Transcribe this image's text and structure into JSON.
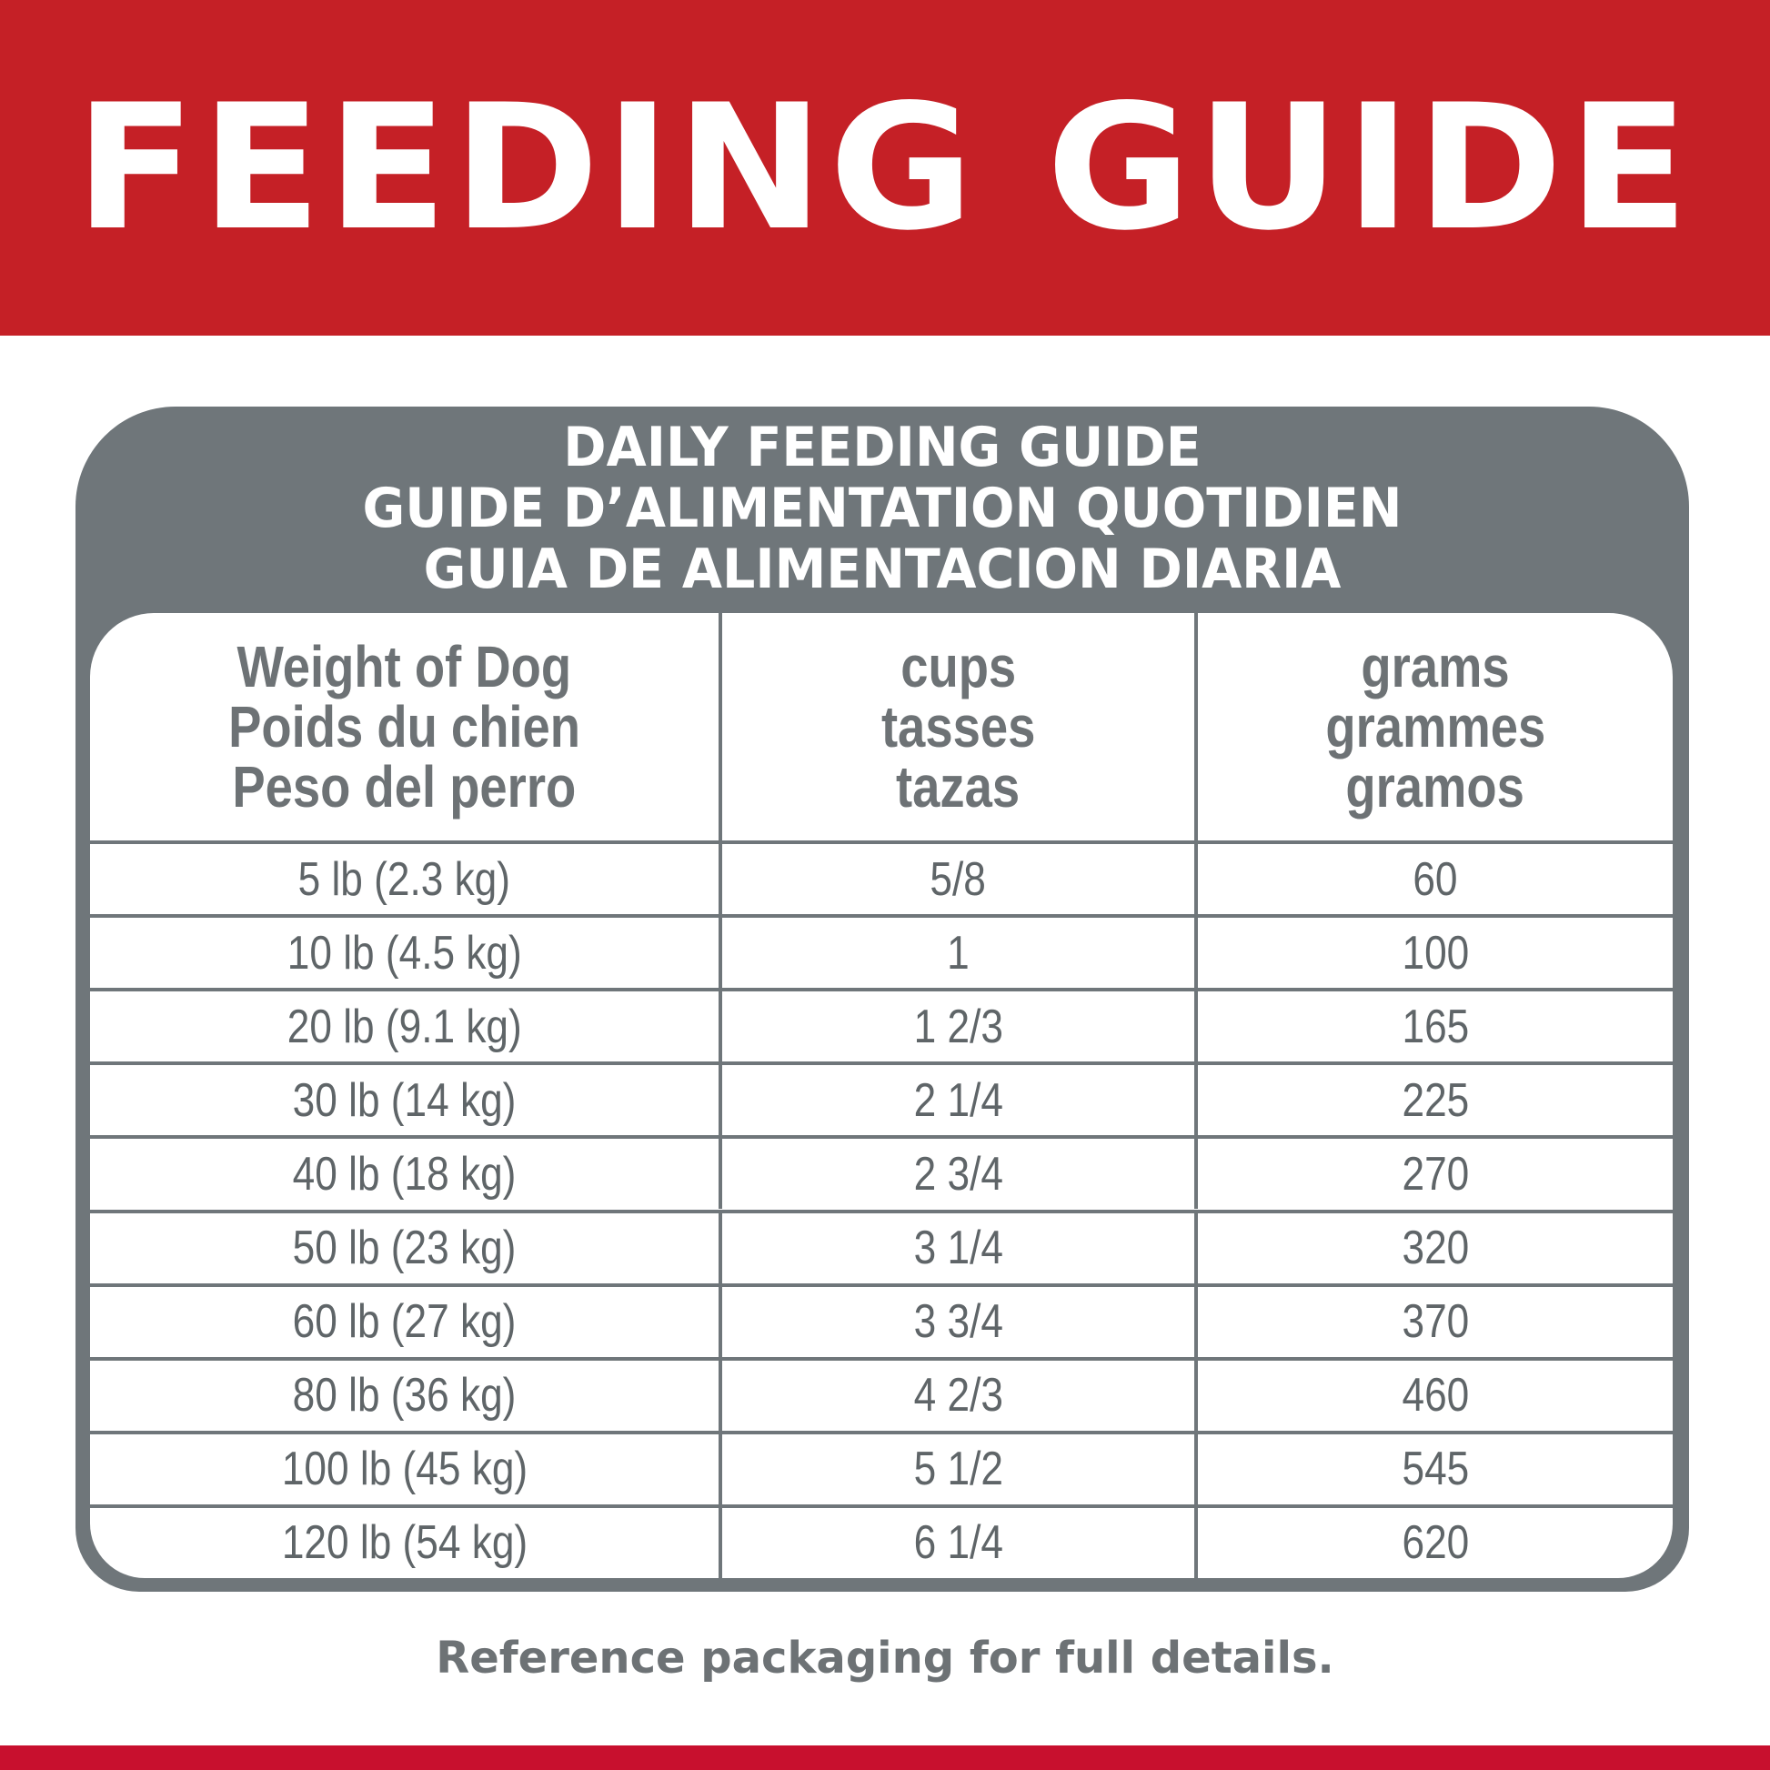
{
  "header": {
    "title": "FEEDING GUIDE"
  },
  "panel": {
    "title_lines": [
      "DAILY FEEDING GUIDE",
      "GUIDE D’ALIMENTATION QUOTIDIEN",
      "GUIA DE ALIMENTACION DIARIA"
    ]
  },
  "table": {
    "columns": [
      {
        "lines": [
          "Weight of Dog",
          "Poids du chien",
          "Peso del perro"
        ]
      },
      {
        "lines": [
          "cups",
          "tasses",
          "tazas"
        ]
      },
      {
        "lines": [
          "grams",
          "grammes",
          "gramos"
        ]
      }
    ],
    "rows": [
      {
        "weight": "5 lb (2.3 kg)",
        "cups": "5/8",
        "grams": "60"
      },
      {
        "weight": "10 lb (4.5 kg)",
        "cups": "1",
        "grams": "100"
      },
      {
        "weight": "20 lb (9.1 kg)",
        "cups": "1 2/3",
        "grams": "165"
      },
      {
        "weight": "30 lb (14 kg)",
        "cups": "2 1/4",
        "grams": "225"
      },
      {
        "weight": "40 lb (18 kg)",
        "cups": "2 3/4",
        "grams": "270"
      },
      {
        "weight": "50 lb (23 kg)",
        "cups": "3 1/4",
        "grams": "320"
      },
      {
        "weight": "60 lb (27 kg)",
        "cups": "3 3/4",
        "grams": "370"
      },
      {
        "weight": "80 lb (36 kg)",
        "cups": "4 2/3",
        "grams": "460"
      },
      {
        "weight": "100 lb (45 kg)",
        "cups": "5 1/2",
        "grams": "545"
      },
      {
        "weight": "120 lb (54 kg)",
        "cups": "6 1/4",
        "grams": "620"
      }
    ]
  },
  "footer": {
    "note": "Reference packaging for full details."
  },
  "colors": {
    "brand_red": "#c52026",
    "panel_gray": "#6f767a",
    "text_gray": "#6d7275"
  }
}
